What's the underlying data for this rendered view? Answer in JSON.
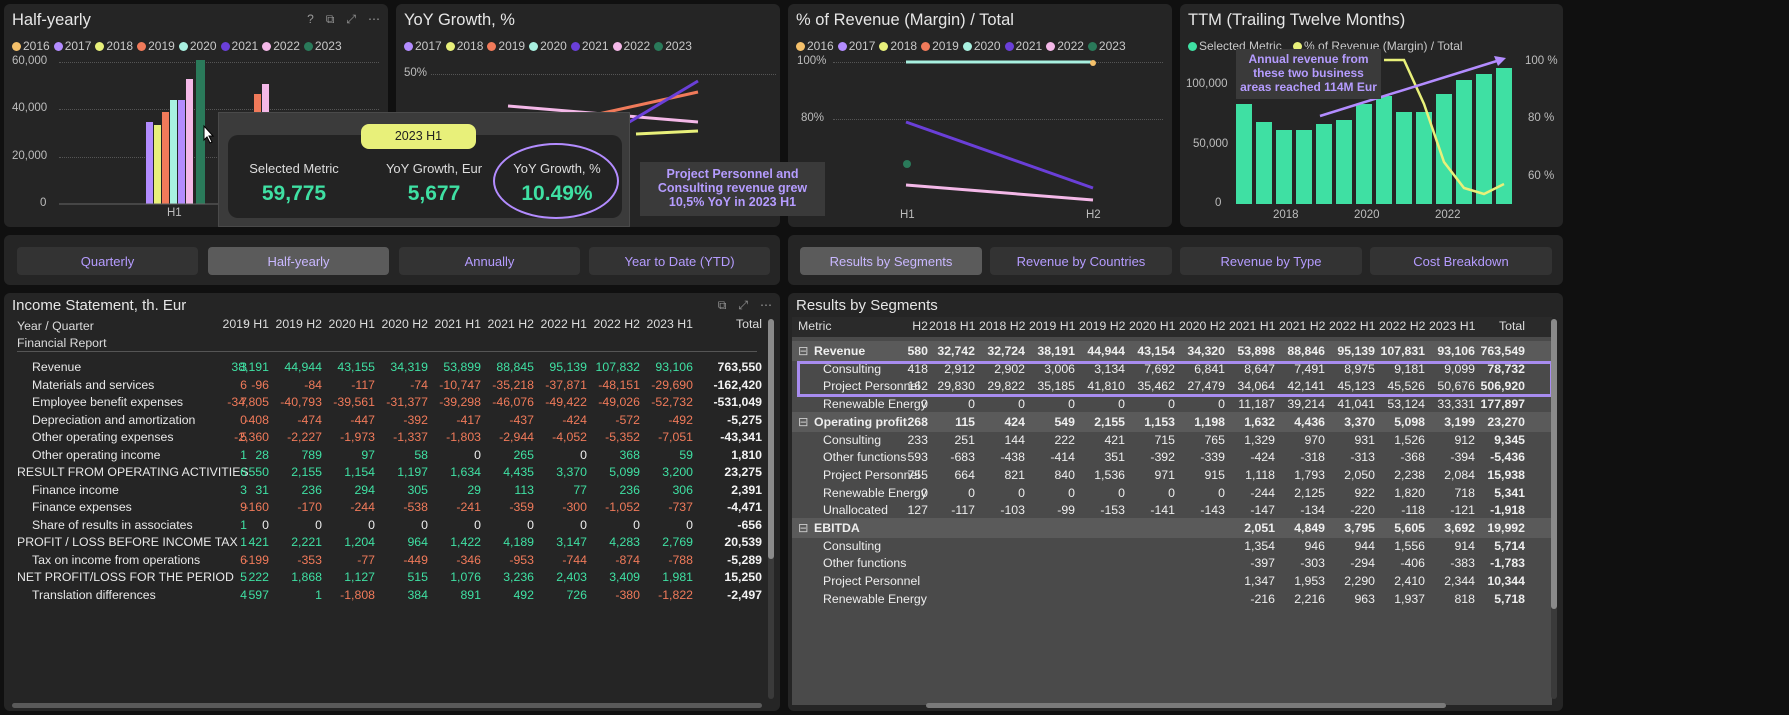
{
  "panels": {
    "half_yearly": {
      "title": "Half-yearly",
      "legend": [
        "2016",
        "2017",
        "2018",
        "2019",
        "2020",
        "2021",
        "2022",
        "2023"
      ],
      "yticks": [
        "60,000",
        "40,000",
        "20,000",
        "0"
      ],
      "x_label": "H1"
    },
    "yoy": {
      "title": "YoY Growth, %",
      "legend": [
        "2017",
        "2018",
        "2019",
        "2020",
        "2021",
        "2022",
        "2023"
      ],
      "ytick": "50%"
    },
    "margin": {
      "title": "% of Revenue (Margin) / Total",
      "legend": [
        "2016",
        "2017",
        "2018",
        "2019",
        "2020",
        "2021",
        "2022",
        "2023"
      ],
      "yticks": [
        "100%",
        "80%"
      ],
      "xticks": [
        "H1",
        "H2"
      ]
    },
    "ttm": {
      "title": "TTM (Trailing Twelve Months)",
      "legend": [
        "Selected Metric",
        "% of Revenue (Margin) / Total"
      ],
      "yticks_left": [
        "100,000",
        "50,000",
        "0"
      ],
      "yticks_right": [
        "100 %",
        "80 %",
        "60 %"
      ],
      "xticks": [
        "2018",
        "2020",
        "2022"
      ],
      "annotation": "Annual revenue from these two business areas reached 114M Eur"
    }
  },
  "year_colors": {
    "2016": "#f4c06a",
    "2017": "#b38cff",
    "2018": "#e8f07a",
    "2019": "#f07a5a",
    "2020": "#a8f0e0",
    "2021": "#6a3fd8",
    "2022": "#f4b8e8",
    "2023": "#2a7a5a"
  },
  "tooltip": {
    "period": "2023 H1",
    "metrics": [
      {
        "label": "Selected Metric",
        "value": "59,775"
      },
      {
        "label": "YoY Growth, Eur",
        "value": "5,677"
      },
      {
        "label": "YoY Growth, %",
        "value": "10.49%"
      }
    ]
  },
  "callout": "Project Personnel and Consulting revenue grew 10,5% YoY in 2023 H1",
  "left_tabs": [
    "Quarterly",
    "Half-yearly",
    "Annually",
    "Year to Date (YTD)"
  ],
  "right_tabs": [
    "Results by Segments",
    "Revenue by Countries",
    "Revenue by Type",
    "Cost Breakdown"
  ],
  "income": {
    "title": "Income Statement, th. Eur",
    "hdr1": "Year / Quarter",
    "hdr2": "Financial Report",
    "cols": [
      ":",
      "2019 H1",
      "2019 H2",
      "2020 H1",
      "2020 H2",
      "2021 H1",
      "2021 H2",
      "2022 H1",
      "2022 H2",
      "2023 H1",
      "Total"
    ],
    "rows": [
      {
        "n": "Revenue",
        "i": 1,
        "v": [
          "3",
          "38,191",
          "44,944",
          "43,155",
          "34,319",
          "53,899",
          "88,845",
          "95,139",
          "107,832",
          "93,106",
          "763,550"
        ]
      },
      {
        "n": "Materials and services",
        "i": 1,
        "v": [
          "6",
          "-96",
          "-84",
          "-117",
          "-74",
          "-10,747",
          "-35,218",
          "-37,871",
          "-48,151",
          "-29,690",
          "-162,420"
        ]
      },
      {
        "n": "Employee benefit expenses",
        "i": 1,
        "v": [
          "7",
          "-34,805",
          "-40,793",
          "-39,561",
          "-31,377",
          "-39,298",
          "-46,076",
          "-49,422",
          "-49,026",
          "-52,732",
          "-531,049"
        ]
      },
      {
        "n": "Depreciation and amortization",
        "i": 1,
        "v": [
          "0",
          "-408",
          "-474",
          "-447",
          "-392",
          "-417",
          "-437",
          "-424",
          "-572",
          "-492",
          "-5,275"
        ]
      },
      {
        "n": "Other operating expenses",
        "i": 1,
        "v": [
          "5",
          "-2,360",
          "-2,227",
          "-1,973",
          "-1,337",
          "-1,803",
          "-2,944",
          "-4,052",
          "-5,352",
          "-7,051",
          "-43,341"
        ]
      },
      {
        "n": "Other operating income",
        "i": 1,
        "v": [
          "1",
          "28",
          "789",
          "97",
          "58",
          "0",
          "265",
          "0",
          "368",
          "59",
          "1,810"
        ]
      },
      {
        "n": "RESULT FROM OPERATING ACTIVITIES",
        "i": 0,
        "v": [
          "6",
          "550",
          "2,155",
          "1,154",
          "1,197",
          "1,634",
          "4,435",
          "3,370",
          "5,099",
          "3,200",
          "23,275"
        ]
      },
      {
        "n": "Finance income",
        "i": 1,
        "v": [
          "3",
          "31",
          "236",
          "294",
          "305",
          "29",
          "113",
          "77",
          "236",
          "306",
          "2,391"
        ]
      },
      {
        "n": "Finance expenses",
        "i": 1,
        "v": [
          "9",
          "-160",
          "-170",
          "-244",
          "-538",
          "-241",
          "-359",
          "-300",
          "-1,052",
          "-737",
          "-4,471"
        ]
      },
      {
        "n": "Share of results in associates",
        "i": 1,
        "v": [
          "1",
          "0",
          "0",
          "0",
          "0",
          "0",
          "0",
          "0",
          "0",
          "0",
          "-656"
        ]
      },
      {
        "n": "PROFIT / LOSS BEFORE INCOME TAX",
        "i": 0,
        "v": [
          "1",
          "421",
          "2,221",
          "1,204",
          "964",
          "1,422",
          "4,189",
          "3,147",
          "4,283",
          "2,769",
          "20,539"
        ]
      },
      {
        "n": "Tax on income from operations",
        "i": 1,
        "v": [
          "6",
          "-199",
          "-353",
          "-77",
          "-449",
          "-346",
          "-953",
          "-744",
          "-874",
          "-788",
          "-5,289"
        ]
      },
      {
        "n": "NET PROFIT/LOSS FOR THE PERIOD",
        "i": 0,
        "v": [
          "5",
          "222",
          "1,868",
          "1,127",
          "515",
          "1,076",
          "3,236",
          "2,403",
          "3,409",
          "1,981",
          "15,250"
        ]
      },
      {
        "n": "Translation differences",
        "i": 1,
        "v": [
          "4",
          "597",
          "1",
          "-1,808",
          "384",
          "891",
          "492",
          "726",
          "-380",
          "-1,822",
          "-2,497"
        ]
      }
    ]
  },
  "segments": {
    "title": "Results by Segments",
    "hdr": "Metric",
    "cols": [
      "H2",
      "2018 H1",
      "2018 H2",
      "2019 H1",
      "2019 H2",
      "2020 H1",
      "2020 H2",
      "2021 H1",
      "2021 H2",
      "2022 H1",
      "2022 H2",
      "2023 H1",
      "Total"
    ],
    "rows": [
      {
        "n": "Revenue",
        "g": 1,
        "v": [
          "580",
          "32,742",
          "32,724",
          "38,191",
          "44,944",
          "43,154",
          "34,320",
          "53,898",
          "88,846",
          "95,139",
          "107,831",
          "93,106",
          "763,549"
        ]
      },
      {
        "n": "Consulting",
        "g": 0,
        "v": [
          "418",
          "2,912",
          "2,902",
          "3,006",
          "3,134",
          "7,692",
          "6,841",
          "8,647",
          "7,491",
          "8,975",
          "9,181",
          "9,099",
          "78,732"
        ]
      },
      {
        "n": "Project Personnel",
        "g": 0,
        "v": [
          "162",
          "29,830",
          "29,822",
          "35,185",
          "41,810",
          "35,462",
          "27,479",
          "34,064",
          "42,141",
          "45,123",
          "45,526",
          "50,676",
          "506,920"
        ]
      },
      {
        "n": "Renewable Energy",
        "g": 0,
        "v": [
          "0",
          "0",
          "0",
          "0",
          "0",
          "0",
          "0",
          "11,187",
          "39,214",
          "41,041",
          "53,124",
          "33,331",
          "177,897"
        ]
      },
      {
        "n": "Operating profit",
        "g": 1,
        "v": [
          "268",
          "115",
          "424",
          "549",
          "2,155",
          "1,153",
          "1,198",
          "1,632",
          "4,436",
          "3,370",
          "5,098",
          "3,199",
          "23,270"
        ]
      },
      {
        "n": "Consulting",
        "g": 0,
        "v": [
          "233",
          "251",
          "144",
          "222",
          "421",
          "715",
          "765",
          "1,329",
          "970",
          "931",
          "1,526",
          "912",
          "9,345"
        ]
      },
      {
        "n": "Other functions",
        "g": 0,
        "v": [
          "593",
          "-683",
          "-438",
          "-414",
          "351",
          "-392",
          "-339",
          "-424",
          "-318",
          "-313",
          "-368",
          "-394",
          "-5,436"
        ]
      },
      {
        "n": "Project Personnel",
        "g": 0,
        "v": [
          "755",
          "664",
          "821",
          "840",
          "1,536",
          "971",
          "915",
          "1,118",
          "1,793",
          "2,050",
          "2,238",
          "2,084",
          "15,938"
        ]
      },
      {
        "n": "Renewable Energy",
        "g": 0,
        "v": [
          "0",
          "0",
          "0",
          "0",
          "0",
          "0",
          "0",
          "-244",
          "2,125",
          "922",
          "1,820",
          "718",
          "5,341"
        ]
      },
      {
        "n": "Unallocated",
        "g": 0,
        "v": [
          "127",
          "-117",
          "-103",
          "-99",
          "-153",
          "-141",
          "-143",
          "-147",
          "-134",
          "-220",
          "-118",
          "-121",
          "-1,918"
        ]
      },
      {
        "n": "EBITDA",
        "g": 1,
        "v": [
          "",
          "",
          "",
          "",
          "",
          "",
          "",
          "2,051",
          "4,849",
          "3,795",
          "5,605",
          "3,692",
          "19,992"
        ]
      },
      {
        "n": "Consulting",
        "g": 0,
        "v": [
          "",
          "",
          "",
          "",
          "",
          "",
          "",
          "1,354",
          "946",
          "944",
          "1,556",
          "914",
          "5,714"
        ]
      },
      {
        "n": "Other functions",
        "g": 0,
        "v": [
          "",
          "",
          "",
          "",
          "",
          "",
          "",
          "-397",
          "-303",
          "-294",
          "-406",
          "-383",
          "-1,783"
        ]
      },
      {
        "n": "Project Personnel",
        "g": 0,
        "v": [
          "",
          "",
          "",
          "",
          "",
          "",
          "",
          "1,347",
          "1,953",
          "2,290",
          "2,410",
          "2,344",
          "10,344"
        ]
      },
      {
        "n": "Renewable Energy",
        "g": 0,
        "v": [
          "",
          "",
          "",
          "",
          "",
          "",
          "",
          "-216",
          "2,216",
          "963",
          "1,937",
          "818",
          "5,718"
        ]
      }
    ]
  }
}
